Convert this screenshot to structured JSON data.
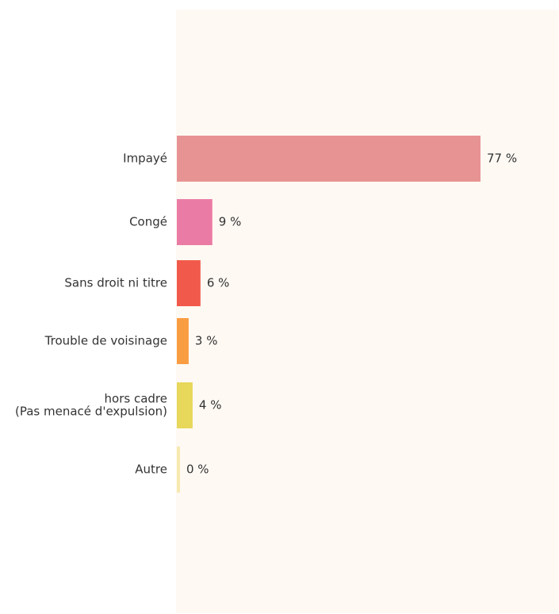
{
  "chart_data": {
    "type": "bar",
    "orientation": "horizontal",
    "categories": [
      "Impayé",
      "Congé",
      "Sans droit ni titre",
      "Trouble de voisinage",
      "hors cadre\n(Pas menacé d'expulsion)",
      "Autre"
    ],
    "values": [
      77,
      9,
      6,
      3,
      4,
      0
    ],
    "value_labels": [
      "77 %",
      "9 %",
      "6 %",
      "3 %",
      "4 %",
      "0 %"
    ],
    "colors": [
      "#e79393",
      "#ea7ba4",
      "#f15a4b",
      "#f99d43",
      "#e7d75a",
      "#f6e9b0"
    ],
    "xlim": [
      0,
      100
    ],
    "plot_background": "#fef9f3",
    "grid": false,
    "title": "",
    "xlabel": "",
    "ylabel": ""
  }
}
